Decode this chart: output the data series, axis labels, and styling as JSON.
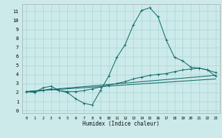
{
  "title": "",
  "xlabel": "Humidex (Indice chaleur)",
  "background_color": "#cceaea",
  "grid_color": "#aad4d4",
  "line_color": "#1a6e6e",
  "xlim": [
    -0.5,
    23.5
  ],
  "ylim": [
    -0.3,
    11.8
  ],
  "xticks": [
    0,
    1,
    2,
    3,
    4,
    5,
    6,
    7,
    8,
    9,
    10,
    11,
    12,
    13,
    14,
    15,
    16,
    17,
    18,
    19,
    20,
    21,
    22,
    23
  ],
  "yticks": [
    0,
    1,
    2,
    3,
    4,
    5,
    6,
    7,
    8,
    9,
    10,
    11
  ],
  "line1_x": [
    0,
    1,
    2,
    3,
    4,
    5,
    6,
    7,
    8,
    9,
    10,
    11,
    12,
    13,
    14,
    15,
    16,
    17,
    18,
    19,
    20,
    21,
    22,
    23
  ],
  "line1_y": [
    2.1,
    2.0,
    2.5,
    2.7,
    2.2,
    2.0,
    1.3,
    0.8,
    0.6,
    2.2,
    3.8,
    5.9,
    7.3,
    9.5,
    11.1,
    11.4,
    10.4,
    7.8,
    5.9,
    5.5,
    4.8,
    4.7,
    4.5,
    3.8
  ],
  "line2_x": [
    0,
    1,
    2,
    3,
    4,
    5,
    6,
    7,
    8,
    9,
    10,
    11,
    12,
    13,
    14,
    15,
    16,
    17,
    18,
    19,
    20,
    21,
    22,
    23
  ],
  "line2_y": [
    2.1,
    2.1,
    2.2,
    2.4,
    2.2,
    2.1,
    2.1,
    2.2,
    2.4,
    2.6,
    2.8,
    3.0,
    3.2,
    3.5,
    3.7,
    3.9,
    4.0,
    4.1,
    4.3,
    4.5,
    4.6,
    4.7,
    4.5,
    4.2
  ],
  "line3_x": [
    0,
    23
  ],
  "line3_y": [
    2.1,
    3.5
  ],
  "line4_x": [
    0,
    23
  ],
  "line4_y": [
    2.1,
    3.9
  ],
  "figsize": [
    3.2,
    2.0
  ],
  "dpi": 100
}
